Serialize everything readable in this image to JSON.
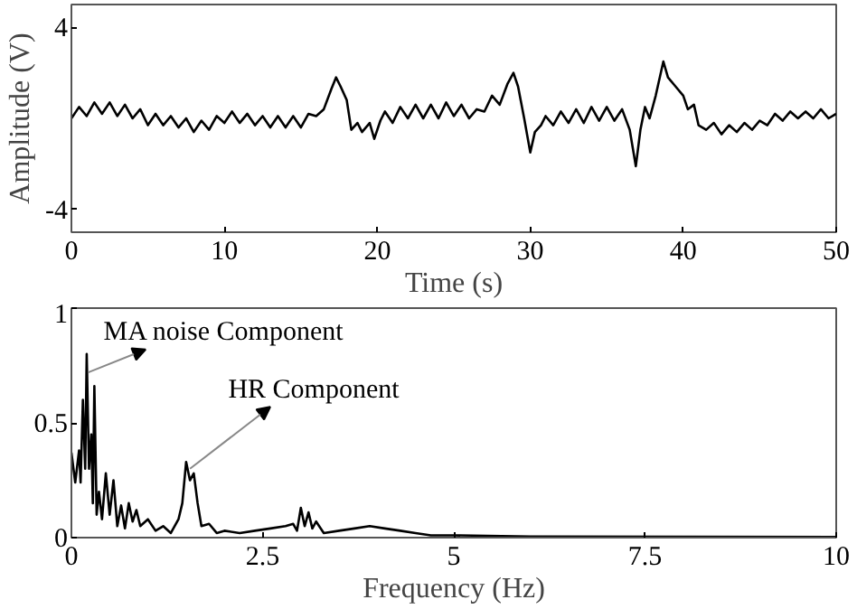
{
  "chart_data": [
    {
      "type": "line",
      "xlabel": "Time (s)",
      "ylabel": "Amplitude (V)",
      "xlim": [
        0,
        50
      ],
      "ylim": [
        -5,
        5
      ],
      "xticks": [
        0,
        10,
        20,
        30,
        40,
        50
      ],
      "yticks": [
        -4,
        4
      ],
      "x": [
        0,
        0.5,
        1,
        1.5,
        2,
        2.5,
        3,
        3.5,
        4,
        4.5,
        5,
        5.5,
        6,
        6.5,
        7,
        7.5,
        8,
        8.5,
        9,
        9.5,
        10,
        10.5,
        11,
        11.5,
        12,
        12.5,
        13,
        13.5,
        14,
        14.5,
        15,
        15.5,
        16,
        16.5,
        17,
        17.3,
        17.6,
        18,
        18.3,
        18.7,
        19,
        19.5,
        19.8,
        20.2,
        20.5,
        21,
        21.5,
        22,
        22.5,
        23,
        23.5,
        24,
        24.5,
        25,
        25.5,
        26,
        26.5,
        27,
        27.5,
        28,
        28.5,
        28.9,
        29.2,
        29.6,
        30,
        30.3,
        30.7,
        31,
        31.5,
        32,
        32.5,
        33,
        33.5,
        34,
        34.5,
        35,
        35.5,
        36,
        36.5,
        36.9,
        37.2,
        37.5,
        37.8,
        38.2,
        38.7,
        39,
        39.5,
        40,
        40.3,
        40.7,
        41,
        41.5,
        42,
        42.5,
        43,
        43.5,
        44,
        44.5,
        45,
        45.5,
        46,
        46.5,
        47,
        47.5,
        48,
        48.5,
        49,
        49.5,
        50
      ],
      "series": [
        {
          "color": "#000000",
          "values": [
            0.0,
            0.5,
            0.1,
            0.7,
            0.2,
            0.7,
            0.1,
            0.6,
            0.0,
            0.4,
            -0.3,
            0.2,
            -0.3,
            0.1,
            -0.4,
            0.0,
            -0.6,
            -0.1,
            -0.5,
            0.1,
            -0.2,
            0.3,
            -0.2,
            0.2,
            -0.3,
            0.1,
            -0.4,
            0.1,
            -0.4,
            0.1,
            -0.4,
            0.2,
            0.1,
            0.4,
            1.3,
            1.8,
            1.4,
            0.8,
            -0.5,
            -0.2,
            -0.6,
            -0.2,
            -0.9,
            -0.1,
            0.3,
            -0.2,
            0.5,
            0.0,
            0.6,
            0.0,
            0.6,
            0.0,
            0.7,
            0.1,
            0.6,
            0.0,
            0.4,
            0.3,
            1.0,
            0.6,
            1.5,
            2.0,
            1.4,
            0.0,
            -1.5,
            -0.6,
            -0.3,
            0.1,
            -0.3,
            0.3,
            -0.2,
            0.4,
            -0.2,
            0.5,
            -0.1,
            0.5,
            -0.1,
            0.4,
            -0.5,
            -2.1,
            -0.5,
            0.5,
            0.0,
            1.0,
            2.5,
            1.8,
            1.4,
            1.0,
            0.4,
            0.6,
            -0.3,
            -0.5,
            -0.2,
            -0.7,
            -0.3,
            -0.6,
            -0.2,
            -0.5,
            -0.1,
            -0.3,
            0.2,
            -0.1,
            0.3,
            0.0,
            0.3,
            0.0,
            0.4,
            0.0,
            0.2
          ]
        }
      ]
    },
    {
      "type": "line",
      "xlabel": "Frequency (Hz)",
      "xlim": [
        0,
        10
      ],
      "ylim": [
        0,
        1
      ],
      "xticks": [
        0,
        2.5,
        5,
        7.5,
        10
      ],
      "yticks": [
        0,
        0.5,
        1
      ],
      "annotations": [
        {
          "text": "MA noise Component",
          "x": 0.22,
          "y": 0.72
        },
        {
          "text": "HR Component",
          "x": 1.55,
          "y": 0.3
        }
      ],
      "x": [
        0,
        0.05,
        0.1,
        0.12,
        0.15,
        0.18,
        0.2,
        0.23,
        0.26,
        0.28,
        0.3,
        0.33,
        0.36,
        0.4,
        0.45,
        0.5,
        0.55,
        0.6,
        0.65,
        0.7,
        0.75,
        0.8,
        0.85,
        0.9,
        1.0,
        1.1,
        1.2,
        1.3,
        1.4,
        1.45,
        1.5,
        1.55,
        1.6,
        1.65,
        1.7,
        1.8,
        1.9,
        2.0,
        2.2,
        2.4,
        2.6,
        2.8,
        2.9,
        2.95,
        3.0,
        3.05,
        3.1,
        3.15,
        3.2,
        3.3,
        3.5,
        3.7,
        3.9,
        4.1,
        4.3,
        4.5,
        4.7,
        5.0,
        6,
        8,
        10
      ],
      "series": [
        {
          "color": "#000000",
          "values": [
            0.37,
            0.24,
            0.38,
            0.24,
            0.6,
            0.3,
            0.8,
            0.3,
            0.45,
            0.15,
            0.66,
            0.1,
            0.2,
            0.08,
            0.28,
            0.1,
            0.25,
            0.05,
            0.14,
            0.04,
            0.15,
            0.07,
            0.12,
            0.05,
            0.08,
            0.03,
            0.05,
            0.02,
            0.08,
            0.15,
            0.33,
            0.25,
            0.28,
            0.15,
            0.05,
            0.06,
            0.02,
            0.03,
            0.02,
            0.03,
            0.04,
            0.05,
            0.06,
            0.03,
            0.13,
            0.05,
            0.11,
            0.04,
            0.07,
            0.02,
            0.03,
            0.04,
            0.05,
            0.04,
            0.03,
            0.02,
            0.01,
            0.01,
            0.005,
            0.004,
            0.003
          ]
        }
      ]
    }
  ]
}
